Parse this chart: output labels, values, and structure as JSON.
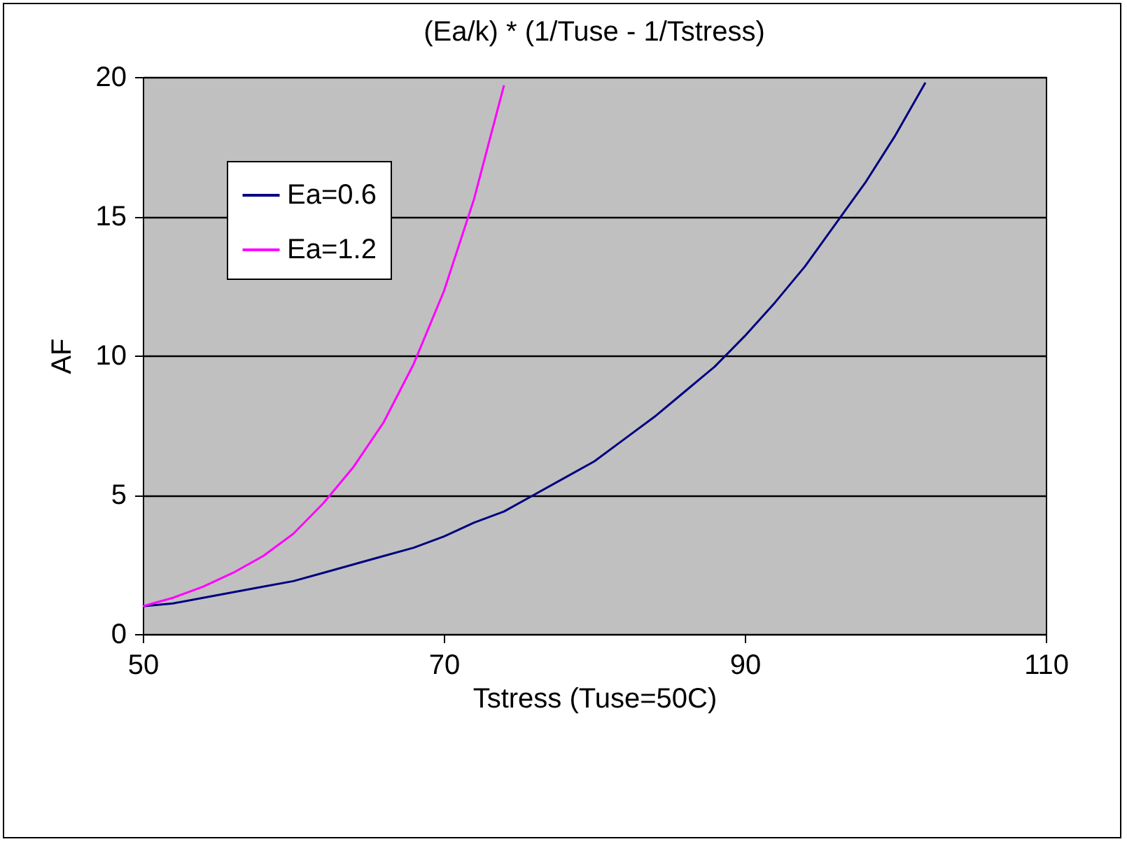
{
  "chart_data": {
    "type": "line",
    "title": "(Ea/k) * (1/Tuse - 1/Tstress)",
    "xlabel": "Tstress (Tuse=50C)",
    "ylabel": "AF",
    "xlim": [
      50,
      110
    ],
    "xticks": [
      50,
      70,
      90,
      110
    ],
    "ylim": [
      0,
      20
    ],
    "yticks": [
      0,
      5,
      10,
      15,
      20
    ],
    "grid": "y",
    "legend": "top left",
    "line_style": "solid",
    "marker": "none",
    "series": [
      {
        "name": "Ea=0.6",
        "color": "#000080",
        "x": [
          50,
          52,
          54,
          56,
          58,
          60,
          62,
          64,
          66,
          68,
          70,
          72,
          74,
          76,
          78,
          80,
          82,
          84,
          86,
          88,
          90,
          92,
          94,
          96,
          98,
          100,
          102
        ],
        "values": [
          1,
          1.1,
          1.3,
          1.5,
          1.7,
          1.9,
          2.2,
          2.5,
          2.8,
          3.1,
          3.5,
          4,
          4.4,
          5,
          5.6,
          6.2,
          7,
          7.8,
          8.7,
          9.6,
          10.7,
          11.9,
          13.2,
          14.7,
          16.2,
          17.9,
          19.8
        ]
      },
      {
        "name": "Ea=1.2",
        "color": "#ff00ff",
        "x": [
          50,
          52,
          54,
          56,
          58,
          60,
          62,
          64,
          66,
          68,
          70,
          72,
          74
        ],
        "values": [
          1,
          1.3,
          1.7,
          2.2,
          2.8,
          3.6,
          4.7,
          6,
          7.6,
          9.7,
          12.3,
          15.6,
          19.7
        ]
      }
    ]
  }
}
